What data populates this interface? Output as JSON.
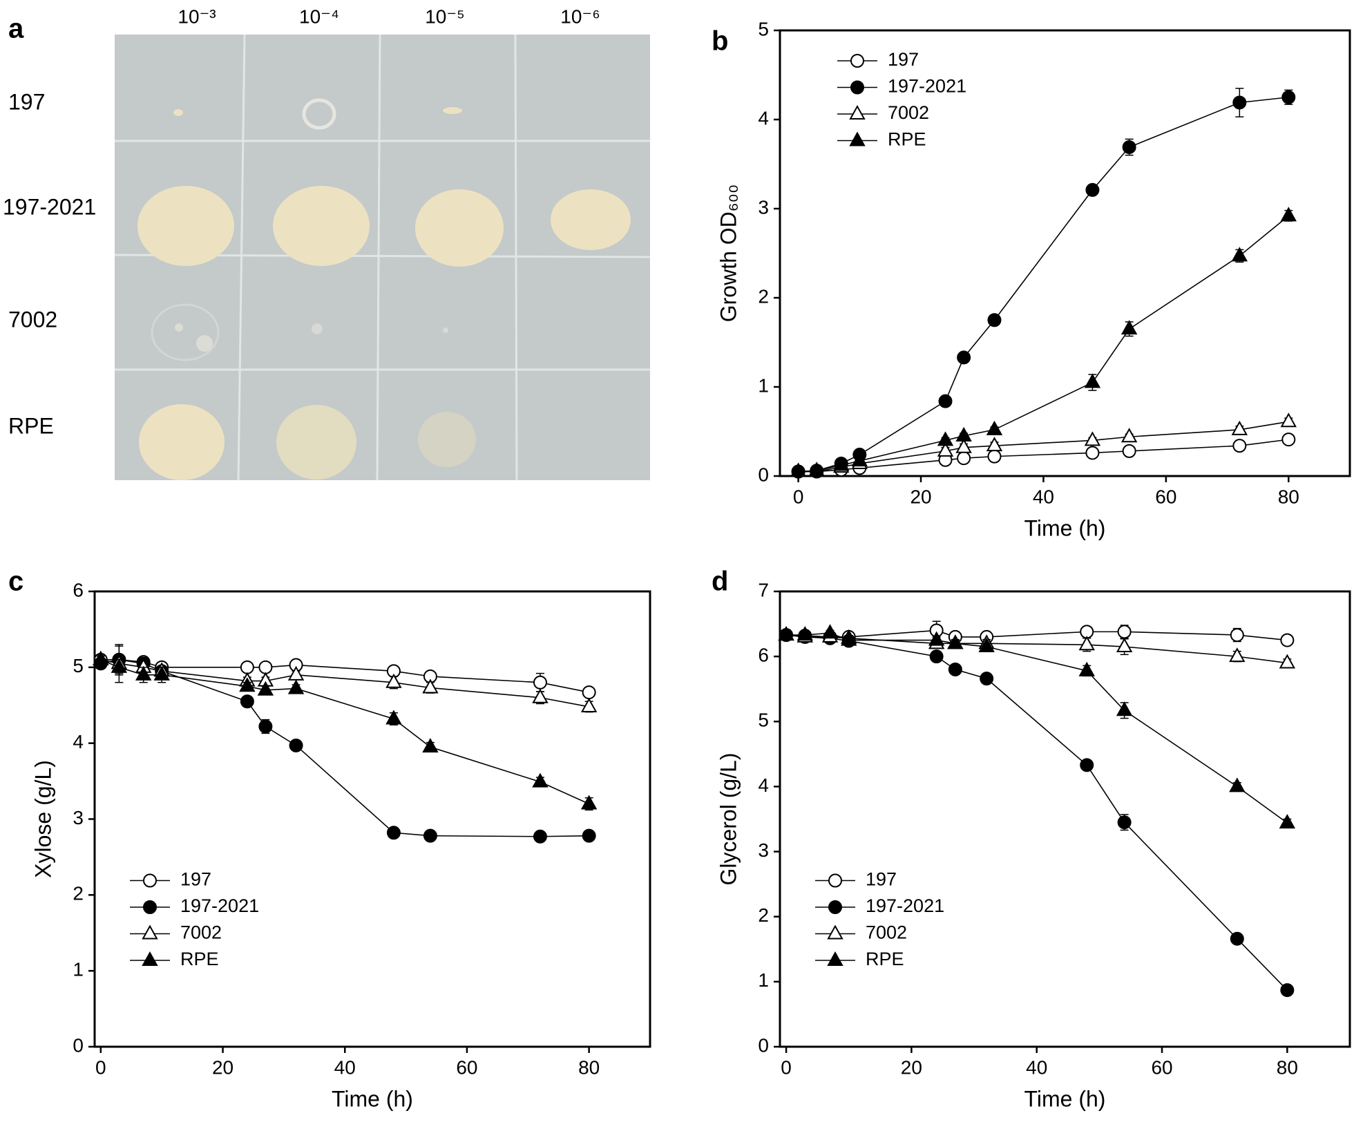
{
  "photo": {
    "panel_label": "a",
    "columns": [
      "10⁻³",
      "10⁻⁴",
      "10⁻⁵",
      "10⁻⁶"
    ],
    "rows": [
      "197",
      "197-2021",
      "7002",
      "RPE"
    ]
  },
  "chart_data": [
    {
      "type": "line",
      "panel_label": "b",
      "x_label": "Time (h)",
      "y_label": "Growth OD₆₀₀",
      "x": [
        0,
        3,
        7,
        10,
        24,
        27,
        32,
        48,
        54,
        72,
        80
      ],
      "xlim": [
        -3,
        90
      ],
      "xticks": [
        0,
        20,
        40,
        60,
        80
      ],
      "ylim": [
        0,
        5
      ],
      "yticks": [
        0,
        1,
        2,
        3,
        4,
        5
      ],
      "legend": "upper left",
      "series": [
        {
          "name": "197",
          "color": "#000000",
          "marker": "circle",
          "filled": false,
          "values": [
            0.05,
            0.05,
            0.07,
            0.09,
            0.18,
            0.2,
            0.22,
            0.26,
            0.28,
            0.34,
            0.41
          ],
          "errors": [
            0.01,
            0.01,
            0.02,
            0.02,
            0.05,
            0.05,
            0.04,
            0.03,
            0.03,
            0.03,
            0.04
          ]
        },
        {
          "name": "197-2021",
          "color": "#000000",
          "marker": "circle",
          "filled": true,
          "values": [
            0.05,
            0.06,
            0.14,
            0.24,
            0.84,
            1.33,
            1.75,
            3.21,
            3.69,
            4.19,
            4.25
          ],
          "errors": [
            0.01,
            0.01,
            0.02,
            0.02,
            0.03,
            0.04,
            0.03,
            0.03,
            0.09,
            0.16,
            0.08
          ]
        },
        {
          "name": "7002",
          "color": "#000000",
          "marker": "triangle",
          "filled": false,
          "values": [
            0.05,
            0.05,
            0.1,
            0.14,
            0.28,
            0.32,
            0.34,
            0.4,
            0.44,
            0.52,
            0.61
          ],
          "errors": [
            0.01,
            0.01,
            0.02,
            0.02,
            0.04,
            0.04,
            0.04,
            0.03,
            0.03,
            0.04,
            0.04
          ]
        },
        {
          "name": "RPE",
          "color": "#000000",
          "marker": "triangle",
          "filled": true,
          "values": [
            0.05,
            0.06,
            0.12,
            0.17,
            0.4,
            0.45,
            0.52,
            1.05,
            1.65,
            2.47,
            2.92
          ],
          "errors": [
            0.01,
            0.01,
            0.02,
            0.02,
            0.03,
            0.03,
            0.03,
            0.09,
            0.08,
            0.07,
            0.06
          ]
        }
      ]
    },
    {
      "type": "line",
      "panel_label": "c",
      "x_label": "Time (h)",
      "y_label": "Xylose (g/L)",
      "x": [
        0,
        3,
        7,
        10,
        24,
        27,
        32,
        48,
        54,
        72,
        80
      ],
      "xlim": [
        -1,
        90
      ],
      "xticks": [
        0,
        20,
        40,
        60,
        80
      ],
      "ylim": [
        0,
        6
      ],
      "yticks": [
        0,
        1,
        2,
        3,
        4,
        5,
        6
      ],
      "legend": "lower left",
      "series": [
        {
          "name": "197",
          "color": "#000000",
          "marker": "circle",
          "filled": false,
          "values": [
            5.1,
            5.1,
            5.07,
            5.0,
            5.0,
            5.0,
            5.03,
            4.95,
            4.88,
            4.8,
            4.67
          ],
          "errors": [
            0.05,
            0.18,
            0.05,
            0.05,
            0.04,
            0.04,
            0.04,
            0.05,
            0.06,
            0.12,
            0.05
          ]
        },
        {
          "name": "197-2021",
          "color": "#000000",
          "marker": "circle",
          "filled": true,
          "values": [
            5.05,
            5.1,
            5.05,
            4.95,
            4.55,
            4.22,
            3.97,
            2.82,
            2.78,
            2.77,
            2.78
          ],
          "errors": [
            0.05,
            0.05,
            0.04,
            0.04,
            0.04,
            0.09,
            0.04,
            0.04,
            0.03,
            0.03,
            0.03
          ]
        },
        {
          "name": "7002",
          "color": "#000000",
          "marker": "triangle",
          "filled": false,
          "values": [
            5.1,
            5.05,
            5.0,
            4.95,
            4.82,
            4.82,
            4.9,
            4.8,
            4.73,
            4.6,
            4.48
          ],
          "errors": [
            0.05,
            0.25,
            0.05,
            0.05,
            0.05,
            0.05,
            0.05,
            0.08,
            0.07,
            0.08,
            0.07
          ]
        },
        {
          "name": "RPE",
          "color": "#000000",
          "marker": "triangle",
          "filled": true,
          "values": [
            5.1,
            5.0,
            4.9,
            4.9,
            4.75,
            4.7,
            4.72,
            4.32,
            3.95,
            3.49,
            3.2
          ],
          "errors": [
            0.05,
            0.1,
            0.1,
            0.1,
            0.05,
            0.05,
            0.05,
            0.08,
            0.06,
            0.06,
            0.08
          ]
        }
      ]
    },
    {
      "type": "line",
      "panel_label": "d",
      "x_label": "Time (h)",
      "y_label": "Glycerol (g/L)",
      "x": [
        0,
        3,
        7,
        10,
        24,
        27,
        32,
        48,
        54,
        72,
        80
      ],
      "xlim": [
        -1,
        90
      ],
      "xticks": [
        0,
        20,
        40,
        60,
        80
      ],
      "ylim": [
        0,
        7
      ],
      "yticks": [
        0,
        1,
        2,
        3,
        4,
        5,
        6,
        7
      ],
      "legend": "lower left",
      "series": [
        {
          "name": "197",
          "color": "#000000",
          "marker": "circle",
          "filled": false,
          "values": [
            6.33,
            6.32,
            6.3,
            6.3,
            6.4,
            6.3,
            6.3,
            6.38,
            6.38,
            6.33,
            6.25
          ],
          "errors": [
            0.04,
            0.04,
            0.04,
            0.04,
            0.14,
            0.07,
            0.05,
            0.06,
            0.1,
            0.1,
            0.04
          ]
        },
        {
          "name": "197-2021",
          "color": "#000000",
          "marker": "circle",
          "filled": true,
          "values": [
            6.33,
            6.3,
            6.28,
            6.24,
            6.0,
            5.8,
            5.66,
            4.33,
            3.45,
            1.66,
            0.87
          ],
          "errors": [
            0.04,
            0.04,
            0.04,
            0.04,
            0.04,
            0.04,
            0.04,
            0.04,
            0.12,
            0.04,
            0.04
          ]
        },
        {
          "name": "7002",
          "color": "#000000",
          "marker": "triangle",
          "filled": false,
          "values": [
            6.33,
            6.3,
            6.3,
            6.28,
            6.2,
            6.2,
            6.2,
            6.18,
            6.15,
            6.0,
            5.9
          ],
          "errors": [
            0.04,
            0.04,
            0.04,
            0.04,
            0.06,
            0.06,
            0.06,
            0.1,
            0.12,
            0.08,
            0.06
          ]
        },
        {
          "name": "RPE",
          "color": "#000000",
          "marker": "triangle",
          "filled": true,
          "values": [
            6.33,
            6.33,
            6.36,
            6.25,
            6.25,
            6.2,
            6.15,
            5.78,
            5.17,
            4.0,
            3.44
          ],
          "errors": [
            0.04,
            0.04,
            0.04,
            0.04,
            0.05,
            0.05,
            0.05,
            0.08,
            0.12,
            0.06,
            0.06
          ]
        }
      ]
    }
  ]
}
